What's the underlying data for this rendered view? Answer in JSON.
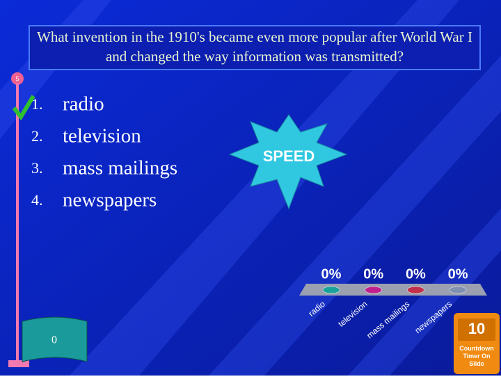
{
  "question": "What invention in the 1910's became even more popular after World War I and changed the way information was transmitted?",
  "participant_count": "5",
  "answers": [
    {
      "number": "1.",
      "text": "radio"
    },
    {
      "number": "2.",
      "text": "television"
    },
    {
      "number": "3.",
      "text": "mass mailings"
    },
    {
      "number": "4.",
      "text": "newspapers"
    }
  ],
  "burst_label": "SPEED",
  "flag_label": "0",
  "timer": {
    "value": "10",
    "caption": "Countdown Timer On Slide"
  },
  "chart_data": {
    "type": "bar",
    "categories": [
      "radio",
      "television",
      "mass mailings",
      "newspapers"
    ],
    "values": [
      0,
      0,
      0,
      0
    ],
    "value_labels": [
      "0%",
      "0%",
      "0%",
      "0%"
    ],
    "colors": [
      "#1aa39a",
      "#c0208e",
      "#c0304a",
      "#8090b0"
    ]
  }
}
